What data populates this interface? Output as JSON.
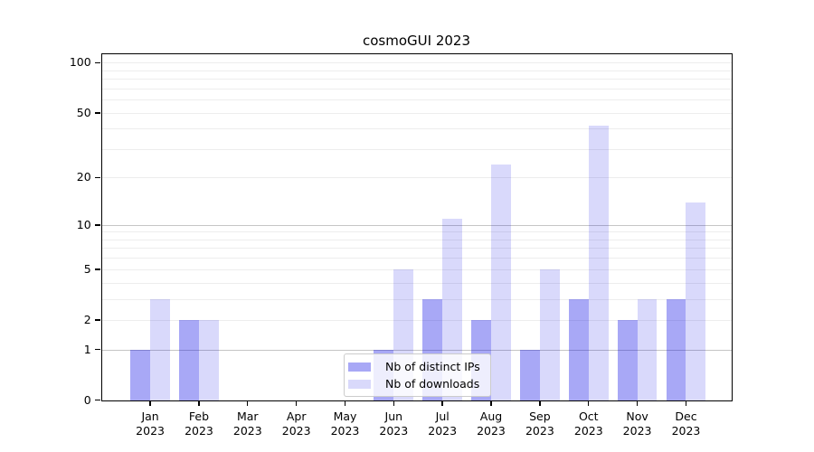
{
  "chart_data": {
    "type": "bar",
    "title": "cosmoGUI 2023",
    "categories": [
      "Jan",
      "Feb",
      "Mar",
      "Apr",
      "May",
      "Jun",
      "Jul",
      "Aug",
      "Sep",
      "Oct",
      "Nov",
      "Dec"
    ],
    "year_label": "2023",
    "series": [
      {
        "name": "Nb of distinct IPs",
        "color": "rgba(0,0,230,0.34)",
        "values": [
          1,
          2,
          0,
          0,
          0,
          1,
          3,
          2,
          1,
          3,
          2,
          3
        ]
      },
      {
        "name": "Nb of downloads",
        "color": "rgba(0,0,230,0.15)",
        "values": [
          3,
          2,
          0,
          0,
          0,
          5,
          11,
          24,
          5,
          42,
          3,
          14
        ]
      }
    ],
    "yscale": "log10(1+value)",
    "ylim": [
      0,
      113
    ],
    "yticks": [
      0,
      1,
      2,
      5,
      10,
      20,
      50,
      100
    ],
    "grid": {
      "orientation": "horizontal",
      "minor_values": [
        2,
        3,
        4,
        5,
        6,
        7,
        8,
        9,
        20,
        30,
        40,
        50,
        60,
        70,
        80,
        90,
        100
      ],
      "major_values": [
        1,
        10
      ]
    },
    "legend": {
      "position": "lower center",
      "framed": true
    }
  }
}
